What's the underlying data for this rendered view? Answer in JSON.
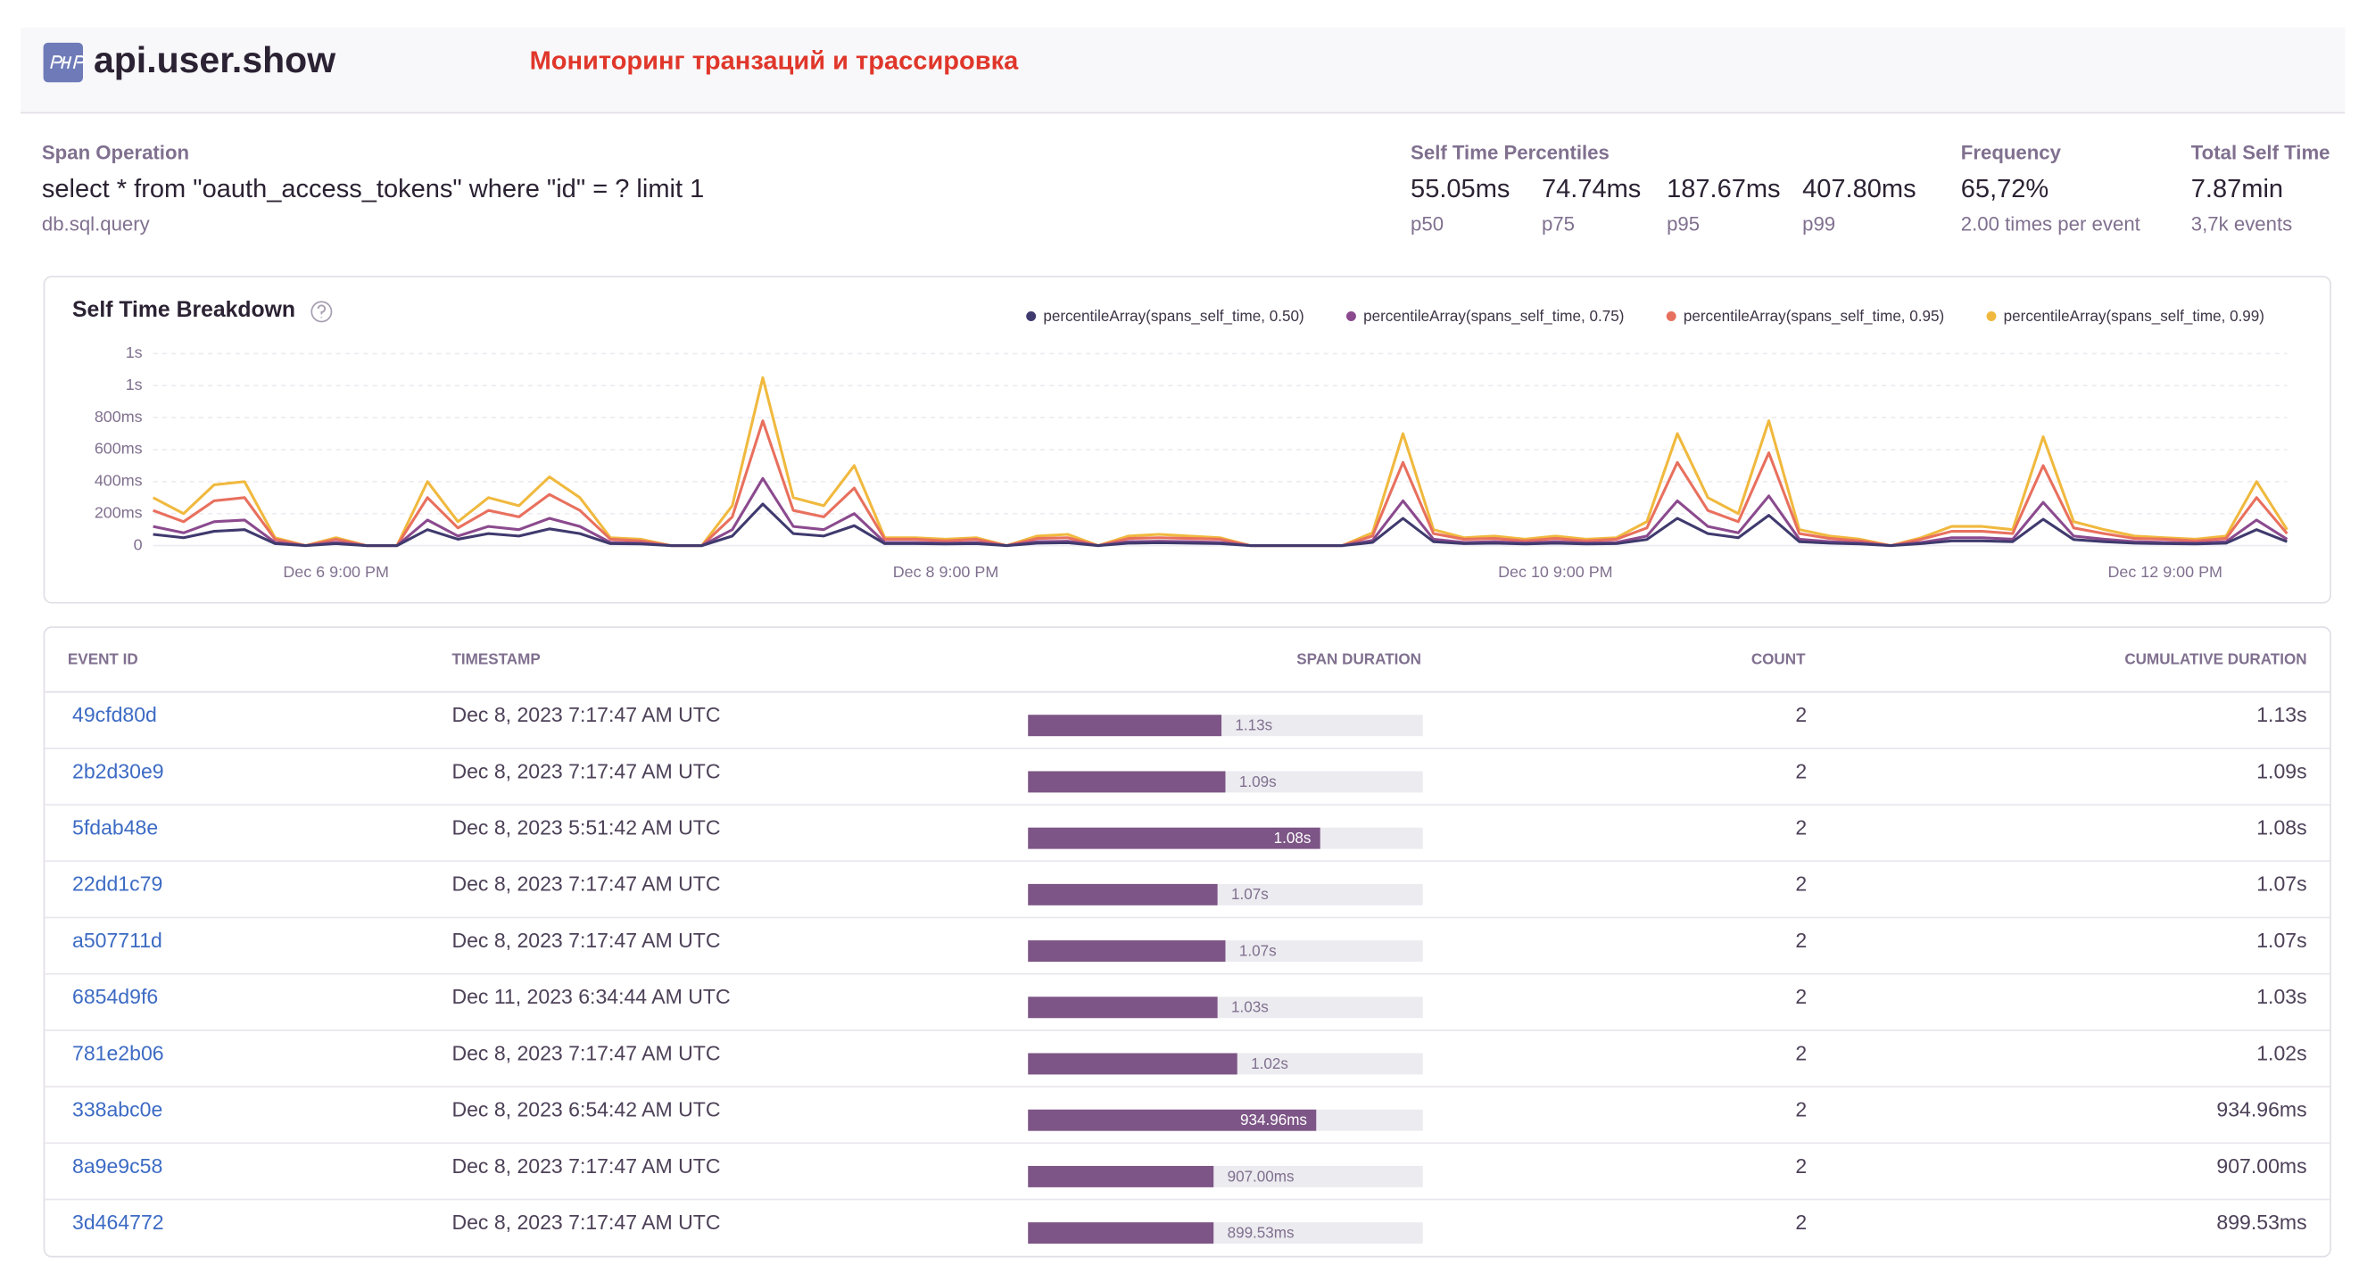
{
  "header": {
    "title": "api.user.show",
    "annotation": "Мониторинг транзаций и трассировка"
  },
  "span_operation": {
    "label": "Span Operation",
    "description": "select * from \"oauth_access_tokens\" where \"id\" = ? limit 1",
    "op": "db.sql.query"
  },
  "percentiles": {
    "label": "Self Time Percentiles",
    "items": [
      {
        "value": "55.05ms",
        "label": "p50"
      },
      {
        "value": "74.74ms",
        "label": "p75"
      },
      {
        "value": "187.67ms",
        "label": "p95"
      },
      {
        "value": "407.80ms",
        "label": "p99"
      }
    ]
  },
  "frequency": {
    "label": "Frequency",
    "value": "65,72%",
    "detail": "2.00 times per event"
  },
  "total_self_time": {
    "label": "Total Self Time",
    "value": "7.87min",
    "detail": "3,7k events"
  },
  "chart_data": {
    "type": "line",
    "title": "Self Time Breakdown",
    "categories": [
      null,
      null,
      null,
      null,
      null,
      null,
      "Dec 6 9:00 PM",
      null,
      null,
      null,
      null,
      null,
      null,
      null,
      null,
      null,
      null,
      null,
      null,
      null,
      null,
      null,
      null,
      null,
      null,
      null,
      "Dec 8 9:00 PM",
      null,
      null,
      null,
      null,
      null,
      null,
      null,
      null,
      null,
      null,
      null,
      null,
      null,
      null,
      null,
      null,
      null,
      null,
      null,
      "Dec 10 9:00 PM",
      null,
      null,
      null,
      null,
      null,
      null,
      null,
      null,
      null,
      null,
      null,
      null,
      null,
      null,
      null,
      null,
      null,
      null,
      null,
      "Dec 12 9:00 PM",
      null,
      null,
      null,
      null
    ],
    "series": [
      {
        "name": "percentileArray(spans_self_time, 0.50)",
        "color": "#3f3a6e",
        "values": [
          70,
          50,
          90,
          100,
          12,
          0,
          12,
          0,
          0,
          100,
          40,
          75,
          60,
          105,
          75,
          12,
          10,
          0,
          0,
          60,
          260,
          75,
          60,
          125,
          12,
          12,
          10,
          12,
          0,
          15,
          18,
          0,
          15,
          18,
          15,
          12,
          0,
          0,
          0,
          0,
          20,
          170,
          25,
          12,
          15,
          10,
          15,
          10,
          12,
          38,
          170,
          75,
          50,
          190,
          25,
          15,
          10,
          0,
          12,
          30,
          30,
          25,
          165,
          38,
          25,
          15,
          12,
          10,
          15,
          100,
          25
        ]
      },
      {
        "name": "percentileArray(spans_self_time, 0.75)",
        "color": "#8b4a8e",
        "values": [
          120,
          80,
          150,
          160,
          20,
          0,
          20,
          0,
          0,
          160,
          60,
          120,
          100,
          170,
          120,
          20,
          15,
          0,
          0,
          100,
          420,
          120,
          100,
          200,
          20,
          20,
          15,
          20,
          0,
          25,
          28,
          0,
          25,
          28,
          25,
          20,
          0,
          0,
          0,
          0,
          32,
          280,
          40,
          20,
          25,
          16,
          25,
          16,
          20,
          60,
          280,
          120,
          80,
          310,
          40,
          25,
          16,
          0,
          20,
          50,
          50,
          40,
          270,
          60,
          40,
          25,
          20,
          16,
          25,
          160,
          40
        ]
      },
      {
        "name": "percentileArray(spans_self_time, 0.95)",
        "color": "#e8705e",
        "values": [
          220,
          150,
          280,
          300,
          40,
          0,
          40,
          0,
          0,
          300,
          110,
          220,
          180,
          320,
          220,
          40,
          30,
          0,
          0,
          180,
          780,
          220,
          180,
          360,
          40,
          40,
          30,
          40,
          0,
          45,
          50,
          0,
          45,
          50,
          45,
          40,
          0,
          0,
          0,
          0,
          60,
          520,
          75,
          40,
          45,
          30,
          45,
          30,
          40,
          110,
          520,
          220,
          150,
          580,
          75,
          45,
          30,
          0,
          40,
          90,
          90,
          75,
          500,
          110,
          75,
          45,
          40,
          30,
          45,
          300,
          75
        ]
      },
      {
        "name": "percentileArray(spans_self_time, 0.99)",
        "color": "#f0b93e",
        "values": [
          300,
          200,
          380,
          400,
          50,
          0,
          50,
          0,
          0,
          400,
          150,
          300,
          250,
          430,
          300,
          50,
          40,
          0,
          0,
          250,
          1050,
          300,
          250,
          500,
          50,
          50,
          40,
          50,
          0,
          60,
          70,
          0,
          60,
          70,
          60,
          50,
          0,
          0,
          0,
          0,
          80,
          700,
          100,
          50,
          60,
          40,
          60,
          40,
          50,
          150,
          700,
          300,
          200,
          780,
          100,
          60,
          40,
          0,
          50,
          120,
          120,
          100,
          680,
          150,
          100,
          60,
          50,
          40,
          60,
          400,
          100
        ]
      }
    ],
    "ylim": [
      0,
      1200
    ],
    "yticks": [
      0,
      {
        "value": 200,
        "label": "200ms"
      },
      {
        "value": 400,
        "label": "400ms"
      },
      {
        "value": 600,
        "label": "600ms"
      },
      {
        "value": 800,
        "label": "800ms"
      },
      {
        "value": 1000,
        "label": "1s"
      },
      {
        "value": 1200,
        "label": "1s"
      }
    ],
    "grid": true
  },
  "table": {
    "columns": [
      "EVENT ID",
      "TIMESTAMP",
      "SPAN DURATION",
      "COUNT",
      "CUMULATIVE DURATION"
    ],
    "rows": [
      {
        "event_id": "49cfd80d",
        "timestamp": "Dec 8, 2023 7:17:47 AM UTC",
        "span_duration": "1.13s",
        "span_percent": 49,
        "count": "2",
        "cumulative": "1.13s"
      },
      {
        "event_id": "2b2d30e9",
        "timestamp": "Dec 8, 2023 7:17:47 AM UTC",
        "span_duration": "1.09s",
        "span_percent": 50,
        "count": "2",
        "cumulative": "1.09s"
      },
      {
        "event_id": "5fdab48e",
        "timestamp": "Dec 8, 2023 5:51:42 AM UTC",
        "span_duration": "1.08s",
        "span_percent": 74,
        "count": "2",
        "cumulative": "1.08s"
      },
      {
        "event_id": "22dd1c79",
        "timestamp": "Dec 8, 2023 7:17:47 AM UTC",
        "span_duration": "1.07s",
        "span_percent": 48,
        "count": "2",
        "cumulative": "1.07s"
      },
      {
        "event_id": "a507711d",
        "timestamp": "Dec 8, 2023 7:17:47 AM UTC",
        "span_duration": "1.07s",
        "span_percent": 50,
        "count": "2",
        "cumulative": "1.07s"
      },
      {
        "event_id": "6854d9f6",
        "timestamp": "Dec 11, 2023 6:34:44 AM UTC",
        "span_duration": "1.03s",
        "span_percent": 48,
        "count": "2",
        "cumulative": "1.03s"
      },
      {
        "event_id": "781e2b06",
        "timestamp": "Dec 8, 2023 7:17:47 AM UTC",
        "span_duration": "1.02s",
        "span_percent": 53,
        "count": "2",
        "cumulative": "1.02s"
      },
      {
        "event_id": "338abc0e",
        "timestamp": "Dec 8, 2023 6:54:42 AM UTC",
        "span_duration": "934.96ms",
        "span_percent": 73,
        "count": "2",
        "cumulative": "934.96ms"
      },
      {
        "event_id": "8a9e9c58",
        "timestamp": "Dec 8, 2023 7:17:47 AM UTC",
        "span_duration": "907.00ms",
        "span_percent": 47,
        "count": "2",
        "cumulative": "907.00ms"
      },
      {
        "event_id": "3d464772",
        "timestamp": "Dec 8, 2023 7:17:47 AM UTC",
        "span_duration": "899.53ms",
        "span_percent": 47,
        "count": "2",
        "cumulative": "899.53ms"
      }
    ]
  }
}
